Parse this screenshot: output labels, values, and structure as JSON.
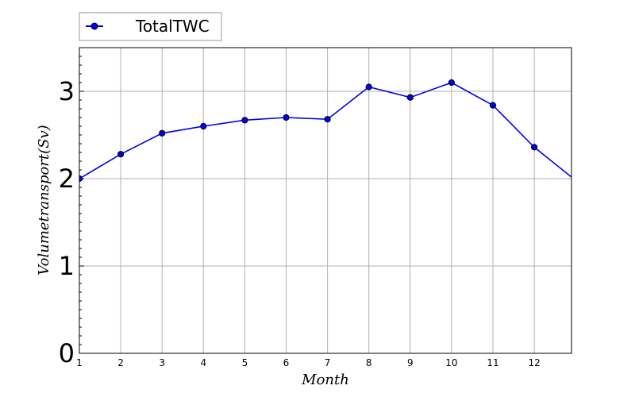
{
  "chart_data": {
    "type": "line",
    "xlabel": "Month",
    "ylabel": "Volumetransport(Sv)",
    "xlim": [
      1,
      12.9
    ],
    "ylim": [
      0,
      3.5
    ],
    "x_ticks": [
      1,
      2,
      3,
      4,
      5,
      6,
      7,
      8,
      9,
      10,
      11,
      12
    ],
    "y_ticks": [
      0,
      1,
      2,
      3
    ],
    "grid": true,
    "legend_position": "top-left, outside plot area",
    "series": [
      {
        "name": "TotalTWC",
        "color": "#0000ee",
        "marker": "circle",
        "x": [
          1,
          2,
          3,
          4,
          5,
          6,
          7,
          8,
          9,
          10,
          11,
          12,
          13
        ],
        "y": [
          2.0,
          2.28,
          2.52,
          2.6,
          2.67,
          2.7,
          2.68,
          3.05,
          2.93,
          3.1,
          2.84,
          2.36,
          1.98
        ]
      }
    ]
  }
}
